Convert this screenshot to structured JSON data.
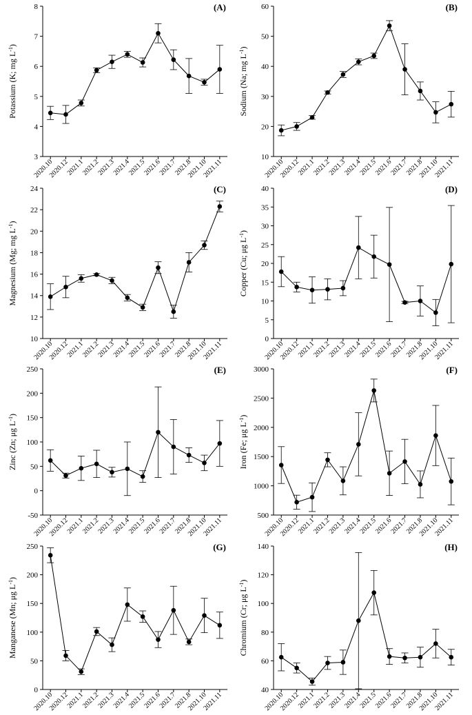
{
  "chart_data": [
    {
      "type": "line",
      "panel": "(A)",
      "ylabel": "Potassium (K; mg L⁻¹)",
      "ylim": [
        3,
        8
      ],
      "yticks": [
        3,
        4,
        5,
        6,
        7,
        8
      ],
      "categories": [
        "2020.10",
        "2020.12",
        "2021.1",
        "2021.2",
        "2021.3",
        "2021.4",
        "2021.5",
        "2021.6",
        "2021.7",
        "2021.8",
        "2021.10",
        "2021.11"
      ],
      "values": [
        4.45,
        4.4,
        4.78,
        5.87,
        6.15,
        6.4,
        6.13,
        7.1,
        6.22,
        5.68,
        5.47,
        5.9
      ],
      "errors": [
        0.22,
        0.3,
        0.1,
        0.08,
        0.22,
        0.1,
        0.15,
        0.32,
        0.33,
        0.58,
        0.1,
        0.8
      ]
    },
    {
      "type": "line",
      "panel": "(B)",
      "ylabel": "Sodium (Na; mg L⁻¹)",
      "ylim": [
        10,
        60
      ],
      "yticks": [
        10,
        20,
        30,
        40,
        50,
        60
      ],
      "categories": [
        "2020.10",
        "2020.12",
        "2021.1",
        "2021.2",
        "2021.3",
        "2021.4",
        "2021.5",
        "2021.6",
        "2021.7",
        "2021.8",
        "2021.10",
        "2021.11"
      ],
      "values": [
        18.7,
        20.0,
        23.0,
        31.3,
        37.3,
        41.5,
        43.5,
        53.5,
        39.0,
        31.8,
        24.7,
        27.4
      ],
      "errors": [
        1.8,
        1.3,
        0.6,
        0.5,
        1.0,
        1.0,
        0.9,
        1.7,
        8.5,
        3.0,
        3.5,
        4.3
      ]
    },
    {
      "type": "line",
      "panel": "(C)",
      "ylabel": "Magnesium (Mg; mg L⁻¹)",
      "ylim": [
        10,
        24
      ],
      "yticks": [
        10,
        12,
        14,
        16,
        18,
        20,
        22,
        24
      ],
      "categories": [
        "2020.10",
        "2020.12",
        "2021.1",
        "2021.2",
        "2021.3",
        "2021.4",
        "2021.5",
        "2021.6",
        "2021.7",
        "2021.8",
        "2021.10",
        "2021.11"
      ],
      "values": [
        13.9,
        14.8,
        15.6,
        15.95,
        15.4,
        13.8,
        12.9,
        16.6,
        12.5,
        17.1,
        18.7,
        22.3
      ],
      "errors": [
        1.2,
        1.0,
        0.35,
        0.1,
        0.3,
        0.3,
        0.3,
        0.55,
        0.6,
        0.9,
        0.4,
        0.5
      ]
    },
    {
      "type": "line",
      "panel": "(D)",
      "ylabel": "Copper (Cu; μg L⁻¹)",
      "ylim": [
        0,
        40
      ],
      "yticks": [
        0,
        5,
        10,
        15,
        20,
        25,
        30,
        35,
        40
      ],
      "categories": [
        "2020.10",
        "2020.12",
        "2021.1",
        "2021.2",
        "2021.3",
        "2021.4",
        "2021.5",
        "2021.6",
        "2021.7",
        "2021.8",
        "2021.10",
        "2021.11"
      ],
      "values": [
        17.8,
        13.7,
        12.9,
        13.1,
        13.4,
        24.2,
        21.8,
        19.7,
        9.6,
        10.0,
        6.9,
        19.8
      ],
      "errors": [
        4.0,
        1.3,
        3.5,
        2.8,
        2.0,
        8.3,
        5.7,
        15.2,
        0.3,
        4.0,
        3.5,
        15.6
      ]
    },
    {
      "type": "line",
      "panel": "(E)",
      "ylabel": "Zinc (Zn; μg L⁻¹)",
      "ylim": [
        -50,
        250
      ],
      "yticks": [
        -50,
        0,
        50,
        100,
        150,
        200,
        250
      ],
      "categories": [
        "2020.10",
        "2020.12",
        "2021.1",
        "2021.2",
        "2021.3",
        "2021.4",
        "2021.5",
        "2021.6",
        "2021.7",
        "2021.8",
        "2021.10",
        "2021.11"
      ],
      "values": [
        62,
        31,
        46,
        55,
        38,
        45,
        29,
        120,
        90,
        73,
        57,
        97
      ],
      "errors": [
        22,
        5,
        25,
        28,
        10,
        55,
        12,
        93,
        56,
        15,
        16,
        47
      ]
    },
    {
      "type": "line",
      "panel": "(F)",
      "ylabel": "Iron (Fe; μg L⁻¹)",
      "ylim": [
        500,
        3000
      ],
      "yticks": [
        500,
        1000,
        1500,
        2000,
        2500,
        3000
      ],
      "categories": [
        "2020.10",
        "2020.12",
        "2021.1",
        "2021.2",
        "2021.3",
        "2021.4",
        "2021.5",
        "2021.6",
        "2021.7",
        "2021.8",
        "2021.10",
        "2021.11"
      ],
      "values": [
        1355,
        720,
        805,
        1445,
        1085,
        1710,
        2630,
        1215,
        1415,
        1025,
        1860,
        1075
      ],
      "errors": [
        315,
        120,
        245,
        120,
        240,
        540,
        195,
        380,
        380,
        230,
        515,
        400
      ]
    },
    {
      "type": "line",
      "panel": "(G)",
      "ylabel": "Manganese (Mn; μg L⁻¹)",
      "ylim": [
        0,
        250
      ],
      "yticks": [
        0,
        50,
        100,
        150,
        200,
        250
      ],
      "categories": [
        "2020.10",
        "2020.12",
        "2021.1",
        "2021.2",
        "2021.3",
        "2021.4",
        "2021.5",
        "2021.6",
        "2021.7",
        "2021.8",
        "2021.10",
        "2021.11"
      ],
      "values": [
        234,
        59,
        31,
        101,
        78,
        148,
        127,
        87,
        138,
        83,
        129,
        112
      ],
      "errors": [
        13,
        9,
        5,
        7,
        12,
        29,
        10,
        14,
        42,
        5,
        30,
        23
      ]
    },
    {
      "type": "line",
      "panel": "(H)",
      "ylabel": "Chromium (Cr; μg L⁻¹)",
      "ylim": [
        40,
        140
      ],
      "yticks": [
        40,
        60,
        80,
        100,
        120,
        140
      ],
      "categories": [
        "2020.10",
        "2020.12",
        "2021.1",
        "2021.2",
        "2021.3",
        "2021.4",
        "2021.5",
        "2021.6",
        "2021.7",
        "2021.8",
        "2021.10",
        "2021.11"
      ],
      "values": [
        62.5,
        55.0,
        45.5,
        58.5,
        59.0,
        88.0,
        107.5,
        63.0,
        62.0,
        62.5,
        72.0,
        62.5
      ],
      "errors": [
        9.5,
        3.5,
        2.5,
        4.5,
        8.5,
        47.5,
        15.5,
        5.5,
        3.5,
        7.0,
        10.0,
        5.5
      ]
    }
  ]
}
